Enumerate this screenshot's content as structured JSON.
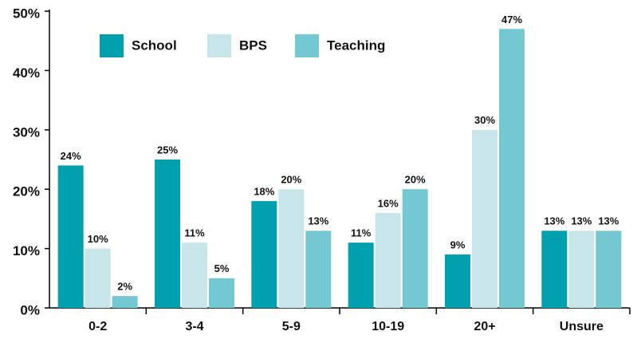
{
  "chart_data": {
    "type": "bar",
    "categories": [
      "0-2",
      "3-4",
      "5-9",
      "10-19",
      "20+",
      "Unsure"
    ],
    "series": [
      {
        "name": "School",
        "color": "#00a0ae",
        "values": [
          24,
          25,
          18,
          11,
          9,
          13
        ],
        "value_labels": [
          "24%",
          "25%",
          "18%",
          "11%",
          "9%",
          "13%"
        ]
      },
      {
        "name": "BPS",
        "color": "#c8e6ea",
        "values": [
          10,
          11,
          20,
          16,
          30,
          13
        ],
        "value_labels": [
          "10%",
          "11%",
          "20%",
          "16%",
          "30%",
          "13%"
        ]
      },
      {
        "name": "Teaching",
        "color": "#74c8d2",
        "values": [
          2,
          5,
          13,
          20,
          47,
          13
        ],
        "value_labels": [
          "2%",
          "5%",
          "13%",
          "20%",
          "47%",
          "13%"
        ]
      }
    ],
    "ylim": [
      0,
      50
    ],
    "yticks": [
      {
        "value": 0,
        "label": "0%"
      },
      {
        "value": 10,
        "label": "10%"
      },
      {
        "value": 20,
        "label": "20%"
      },
      {
        "value": 30,
        "label": "30%"
      },
      {
        "value": 40,
        "label": "40%"
      },
      {
        "value": 50,
        "label": "50%"
      }
    ],
    "legend": "top-left"
  }
}
